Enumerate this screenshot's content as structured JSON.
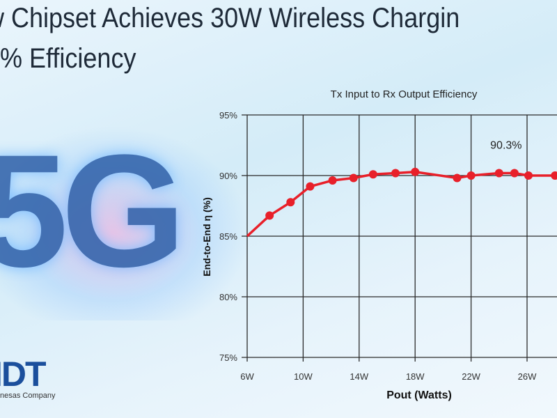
{
  "headline": {
    "line1": "w Chipset Achieves 30W Wireless Chargin",
    "line2": "0% Efficiency"
  },
  "graphic_text": "5G",
  "logo": {
    "text": "IDT",
    "subtitle": "nesas Company"
  },
  "colors": {
    "series": "#e8202a",
    "grid": "#2a2a2a",
    "background": "#d9eef9"
  },
  "chart_data": {
    "type": "line",
    "title": "Tx Input to Rx Output Efficiency",
    "xlabel": "Pout (Watts)",
    "ylabel": "End-to-End η (%)",
    "xlim": [
      6,
      28
    ],
    "ylim": [
      75,
      95
    ],
    "x_ticks": [
      6,
      10,
      14,
      18,
      22,
      26
    ],
    "x_tick_labels": [
      "6W",
      "10W",
      "14W",
      "18W",
      "22W",
      "26W"
    ],
    "y_ticks": [
      75,
      80,
      85,
      90,
      95
    ],
    "y_tick_labels": [
      "75%",
      "80%",
      "85%",
      "90%",
      "95%"
    ],
    "grid": true,
    "series": [
      {
        "x": [
          6,
          7.6,
          9.1,
          10.5,
          12.1,
          13.6,
          15.0,
          16.6,
          18.0,
          21.0,
          22.0,
          24.0,
          25.1,
          26.1,
          28.0
        ],
        "y": [
          85.0,
          86.7,
          87.8,
          89.1,
          89.6,
          89.8,
          90.1,
          90.2,
          90.3,
          89.8,
          90.0,
          90.2,
          90.2,
          90.0,
          90.0
        ],
        "markers": [
          false,
          true,
          true,
          true,
          true,
          true,
          true,
          true,
          true,
          true,
          true,
          true,
          true,
          true,
          true
        ]
      }
    ],
    "annotations": [
      {
        "text": "90.3%",
        "x": 24.5,
        "y": 92.5
      }
    ]
  }
}
